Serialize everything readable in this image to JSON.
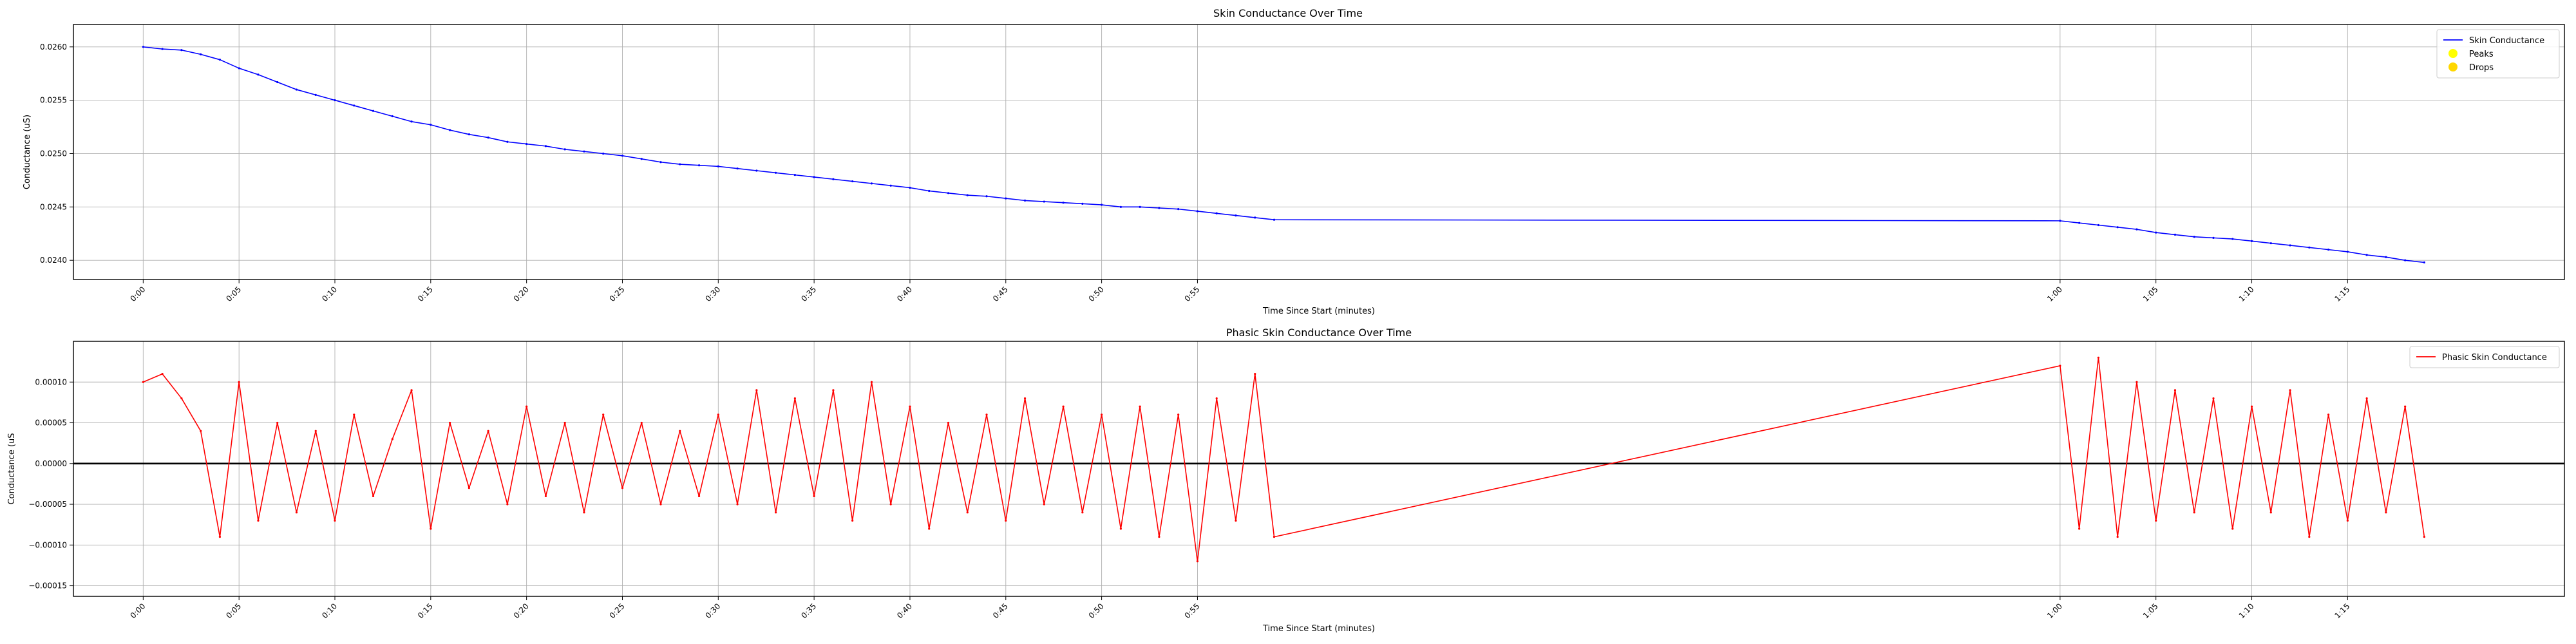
{
  "chart_data": [
    {
      "type": "line",
      "title": "Skin Conductance Over Time",
      "xlabel": "Time Since Start (minutes)",
      "ylabel": "Conductance (uS)",
      "xlim": [
        -0.0364,
        1.2631
      ],
      "ylim": [
        0.02382,
        0.02621
      ],
      "grid": true,
      "legend_position": "top-right",
      "x_ticks": [
        "0:00",
        "0:05",
        "0:10",
        "0:15",
        "0:20",
        "0:25",
        "0:30",
        "0:35",
        "0:40",
        "0:45",
        "0:50",
        "0:55",
        "1:00",
        "1:05",
        "1:10",
        "1:15"
      ],
      "y_ticks": [
        "0.0240",
        "0.0245",
        "0.0250",
        "0.0255",
        "0.0260"
      ],
      "legend": [
        {
          "label": "Skin Conductance",
          "kind": "line",
          "color": "#0000ff"
        },
        {
          "label": "Peaks",
          "kind": "marker",
          "color": "#ffff00"
        },
        {
          "label": "Drops",
          "kind": "marker",
          "color": "#ffd700"
        }
      ],
      "series": [
        {
          "name": "Skin Conductance",
          "color": "#0000ff",
          "x": [
            0.0,
            0.01,
            0.02,
            0.03,
            0.04,
            0.05,
            0.06,
            0.07,
            0.08,
            0.09,
            0.1,
            0.11,
            0.12,
            0.13,
            0.14,
            0.15,
            0.16,
            0.17,
            0.18,
            0.19,
            0.2,
            0.21,
            0.22,
            0.23,
            0.24,
            0.25,
            0.26,
            0.27,
            0.28,
            0.29,
            0.3,
            0.31,
            0.32,
            0.33,
            0.34,
            0.35,
            0.36,
            0.37,
            0.38,
            0.39,
            0.4,
            0.41,
            0.42,
            0.43,
            0.44,
            0.45,
            0.46,
            0.47,
            0.48,
            0.49,
            0.5,
            0.51,
            0.52,
            0.53,
            0.54,
            0.55,
            0.56,
            0.57,
            0.58,
            0.59,
            1.0,
            1.01,
            1.02,
            1.03,
            1.04,
            1.05,
            1.06,
            1.07,
            1.08,
            1.09,
            1.1,
            1.11,
            1.12,
            1.13,
            1.14,
            1.15,
            1.16,
            1.17,
            1.18,
            1.19
          ],
          "y": [
            0.026,
            0.02598,
            0.02597,
            0.02593,
            0.02588,
            0.0258,
            0.02574,
            0.02567,
            0.0256,
            0.02555,
            0.0255,
            0.02545,
            0.0254,
            0.02535,
            0.0253,
            0.02527,
            0.02522,
            0.02518,
            0.02515,
            0.02511,
            0.02509,
            0.02507,
            0.02504,
            0.02502,
            0.025,
            0.02498,
            0.02495,
            0.02492,
            0.0249,
            0.02489,
            0.02488,
            0.02486,
            0.02484,
            0.02482,
            0.0248,
            0.02478,
            0.02476,
            0.02474,
            0.02472,
            0.0247,
            0.02468,
            0.02465,
            0.02463,
            0.02461,
            0.0246,
            0.02458,
            0.02456,
            0.02455,
            0.02454,
            0.02453,
            0.02452,
            0.0245,
            0.0245,
            0.02449,
            0.02448,
            0.02446,
            0.02444,
            0.02442,
            0.0244,
            0.02438,
            0.02437,
            0.02435,
            0.02433,
            0.02431,
            0.02429,
            0.02426,
            0.02424,
            0.02422,
            0.02421,
            0.0242,
            0.02418,
            0.02416,
            0.02414,
            0.02412,
            0.0241,
            0.02408,
            0.02405,
            0.02403,
            0.024,
            0.02398
          ]
        }
      ]
    },
    {
      "type": "line",
      "title": "Phasic Skin Conductance Over Time",
      "xlabel": "Time Since Start (minutes)",
      "ylabel": "Conductance (uS",
      "xlim": [
        -0.0364,
        1.2631
      ],
      "ylim": [
        -0.000163,
        0.00015
      ],
      "grid": true,
      "legend_position": "top-right",
      "zero_line": true,
      "x_ticks": [
        "0:00",
        "0:05",
        "0:10",
        "0:15",
        "0:20",
        "0:25",
        "0:30",
        "0:35",
        "0:40",
        "0:45",
        "0:50",
        "0:55",
        "1:00",
        "1:05",
        "1:10",
        "1:15"
      ],
      "y_ticks": [
        "−0.00015",
        "−0.00010",
        "−0.00005",
        "0.00000",
        "0.00005",
        "0.00010"
      ],
      "legend": [
        {
          "label": "Phasic Skin Conductance",
          "kind": "line",
          "color": "#ff0000"
        }
      ],
      "series": [
        {
          "name": "Phasic Skin Conductance",
          "color": "#ff0000",
          "x": [
            0.0,
            0.01,
            0.02,
            0.03,
            0.04,
            0.05,
            0.06,
            0.07,
            0.08,
            0.09,
            0.1,
            0.11,
            0.12,
            0.13,
            0.14,
            0.15,
            0.16,
            0.17,
            0.18,
            0.19,
            0.2,
            0.21,
            0.22,
            0.23,
            0.24,
            0.25,
            0.26,
            0.27,
            0.28,
            0.29,
            0.3,
            0.31,
            0.32,
            0.33,
            0.34,
            0.35,
            0.36,
            0.37,
            0.38,
            0.39,
            0.4,
            0.41,
            0.42,
            0.43,
            0.44,
            0.45,
            0.46,
            0.47,
            0.48,
            0.49,
            0.5,
            0.51,
            0.52,
            0.53,
            0.54,
            0.55,
            0.56,
            0.57,
            0.58,
            0.59,
            1.0,
            1.01,
            1.02,
            1.03,
            1.04,
            1.05,
            1.06,
            1.07,
            1.08,
            1.09,
            1.1,
            1.11,
            1.12,
            1.13,
            1.14,
            1.15,
            1.16,
            1.17,
            1.18,
            1.19
          ],
          "y": [
            0.0001,
            0.00011,
            8e-05,
            4e-05,
            -9e-05,
            0.0001,
            -7e-05,
            5e-05,
            -6e-05,
            4e-05,
            -7e-05,
            6e-05,
            -4e-05,
            3e-05,
            9e-05,
            -8e-05,
            5e-05,
            -3e-05,
            4e-05,
            -5e-05,
            7e-05,
            -4e-05,
            5e-05,
            -6e-05,
            6e-05,
            -3e-05,
            5e-05,
            -5e-05,
            4e-05,
            -4e-05,
            6e-05,
            -5e-05,
            9e-05,
            -6e-05,
            8e-05,
            -4e-05,
            9e-05,
            -7e-05,
            0.0001,
            -5e-05,
            7e-05,
            -8e-05,
            5e-05,
            -6e-05,
            6e-05,
            -7e-05,
            8e-05,
            -5e-05,
            7e-05,
            -6e-05,
            6e-05,
            -8e-05,
            7e-05,
            -9e-05,
            6e-05,
            -0.00012,
            8e-05,
            -7e-05,
            0.00011,
            -9e-05,
            0.00012,
            -8e-05,
            0.00013,
            -9e-05,
            0.0001,
            -7e-05,
            9e-05,
            -6e-05,
            8e-05,
            -8e-05,
            7e-05,
            -6e-05,
            9e-05,
            -9e-05,
            6e-05,
            -7e-05,
            8e-05,
            -6e-05,
            7e-05,
            -9e-05
          ]
        }
      ]
    }
  ]
}
